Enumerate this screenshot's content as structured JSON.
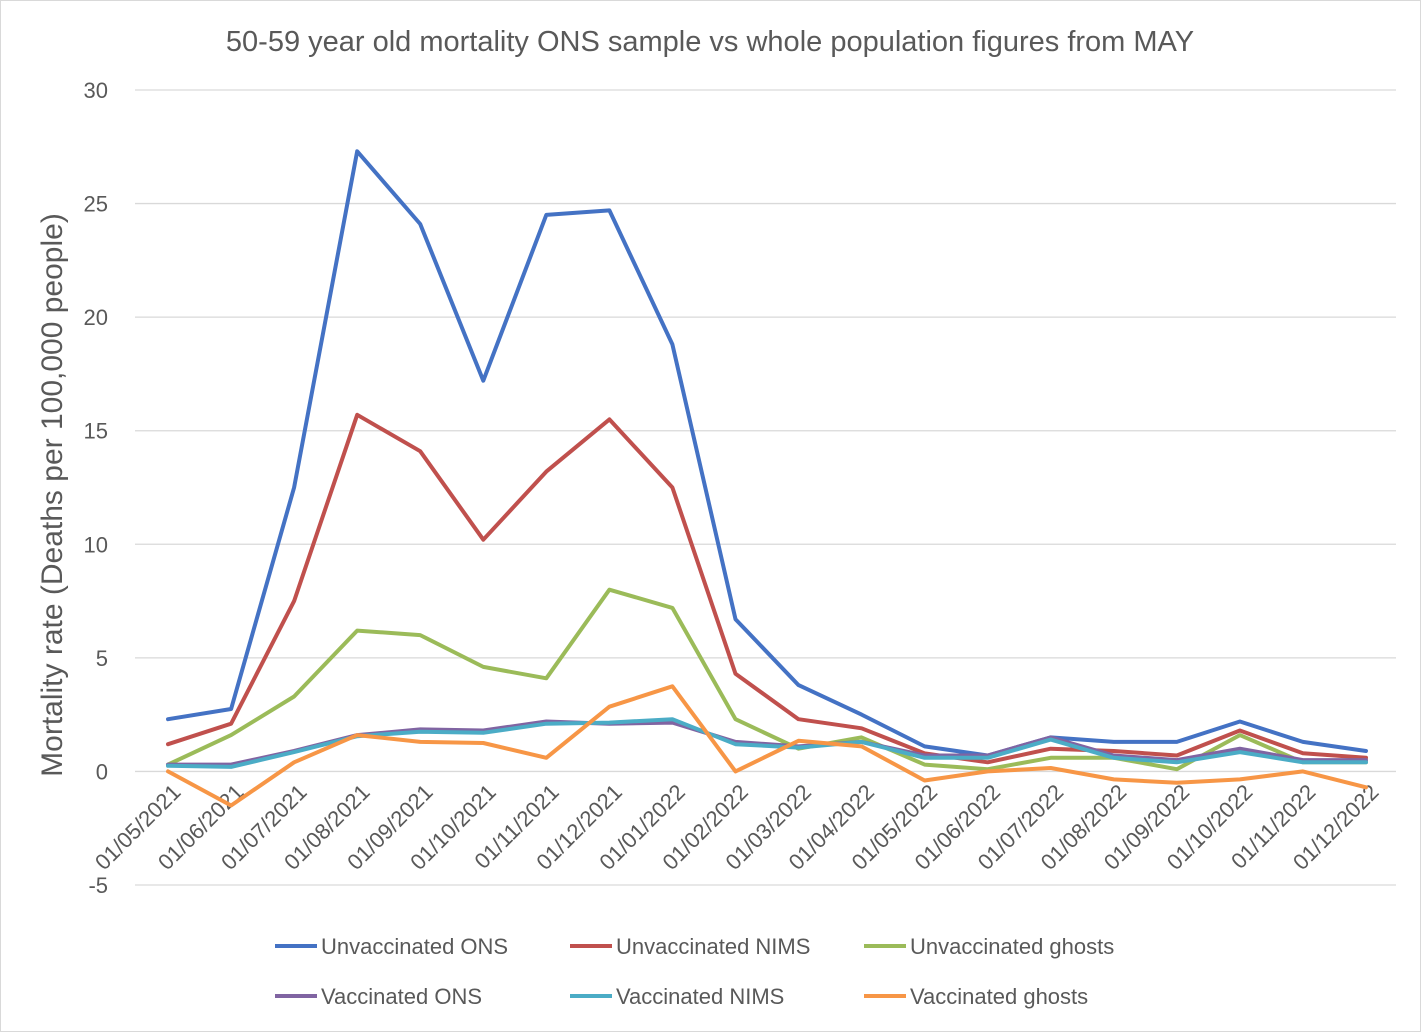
{
  "chart_data": {
    "type": "line",
    "title": "50-59 year old mortality ONS sample vs whole population figures from MAY",
    "xlabel": "",
    "ylabel": "Mortality rate (Deaths per 100,000 people)",
    "ylim": [
      -5,
      30
    ],
    "yticks": [
      "-5",
      "0",
      "5",
      "10",
      "15",
      "20",
      "25",
      "30"
    ],
    "grid": true,
    "legend_position": "bottom",
    "categories": [
      "01/05/2021",
      "01/06/2021",
      "01/07/2021",
      "01/08/2021",
      "01/09/2021",
      "01/10/2021",
      "01/11/2021",
      "01/12/2021",
      "01/01/2022",
      "01/02/2022",
      "01/03/2022",
      "01/04/2022",
      "01/05/2022",
      "01/06/2022",
      "01/07/2022",
      "01/08/2022",
      "01/09/2022",
      "01/10/2022",
      "01/11/2022",
      "01/12/2022"
    ],
    "series": [
      {
        "name": "Unvaccinated ONS",
        "color": "#4472c4",
        "values": [
          2.3,
          2.75,
          12.5,
          27.3,
          24.1,
          17.2,
          24.5,
          24.7,
          18.8,
          6.7,
          3.8,
          2.5,
          1.1,
          0.7,
          1.5,
          1.3,
          1.3,
          2.2,
          1.3,
          0.9
        ]
      },
      {
        "name": "Unvaccinated NIMS",
        "color": "#c0504d",
        "values": [
          1.2,
          2.1,
          7.5,
          15.7,
          14.1,
          10.2,
          13.2,
          15.5,
          12.5,
          4.3,
          2.3,
          1.9,
          0.8,
          0.4,
          1.0,
          0.9,
          0.7,
          1.8,
          0.8,
          0.6
        ]
      },
      {
        "name": "Unvaccinated ghosts",
        "color": "#9bbb59",
        "values": [
          0.3,
          1.6,
          3.3,
          6.2,
          6.0,
          4.6,
          4.1,
          8.0,
          7.2,
          2.3,
          1.0,
          1.5,
          0.3,
          0.1,
          0.6,
          0.6,
          0.1,
          1.6,
          0.4,
          0.4
        ]
      },
      {
        "name": "Vaccinated ONS",
        "color": "#8064a2",
        "values": [
          0.3,
          0.3,
          0.9,
          1.6,
          1.85,
          1.8,
          2.2,
          2.1,
          2.15,
          1.3,
          1.1,
          1.3,
          0.7,
          0.7,
          1.5,
          0.7,
          0.5,
          1.0,
          0.5,
          0.5
        ]
      },
      {
        "name": "Vaccinated NIMS",
        "color": "#4bacc6",
        "values": [
          0.25,
          0.2,
          0.85,
          1.55,
          1.75,
          1.7,
          2.1,
          2.15,
          2.3,
          1.2,
          1.05,
          1.3,
          0.6,
          0.6,
          1.4,
          0.6,
          0.4,
          0.85,
          0.4,
          0.4
        ]
      },
      {
        "name": "Vaccinated ghosts",
        "color": "#f79646",
        "values": [
          0.0,
          -1.5,
          0.4,
          1.6,
          1.3,
          1.25,
          0.6,
          2.85,
          3.75,
          0.0,
          1.35,
          1.1,
          -0.4,
          0.0,
          0.15,
          -0.35,
          -0.5,
          -0.35,
          0.0,
          -0.7
        ]
      }
    ]
  }
}
